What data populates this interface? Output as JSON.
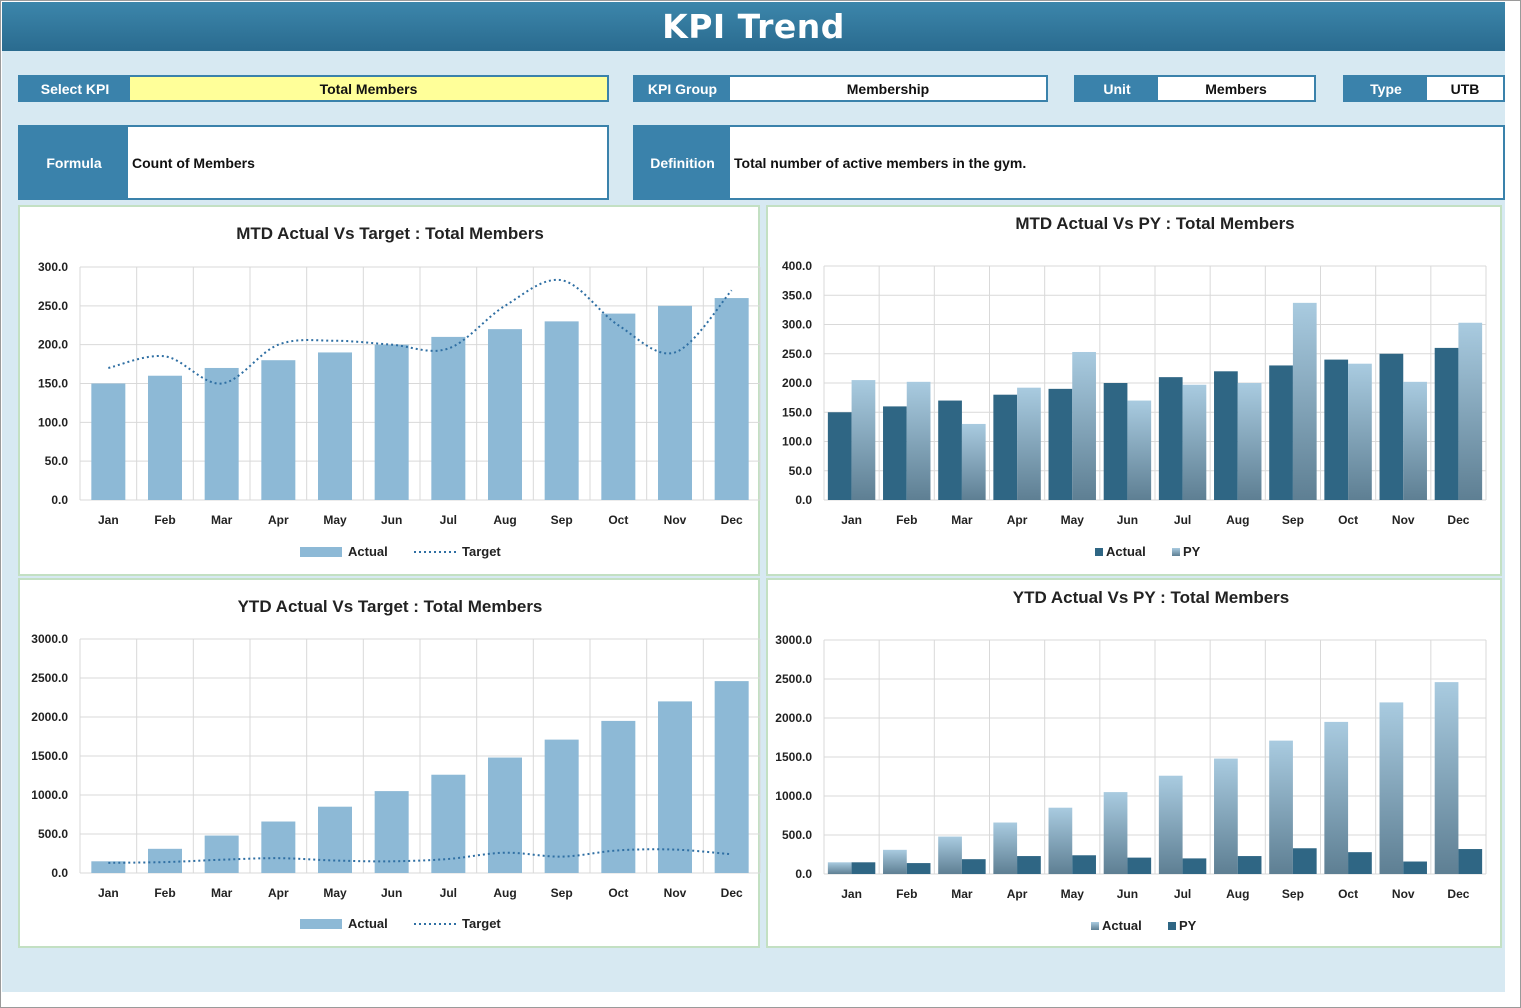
{
  "title": "KPI Trend",
  "filters": {
    "select_kpi": {
      "label": "Select KPI",
      "value": "Total Members"
    },
    "kpi_group": {
      "label": "KPI Group",
      "value": "Membership"
    },
    "unit": {
      "label": "Unit",
      "value": "Members"
    },
    "type": {
      "label": "Type",
      "value": "UTB"
    }
  },
  "formula": {
    "label": "Formula",
    "value": "Count of Members"
  },
  "definition": {
    "label": "Definition",
    "value": "Total number of active members in the gym."
  },
  "colors": {
    "header": "#3a82ab",
    "actual_light": "#8db9d6",
    "actual_dark": "#2f6684",
    "target_line": "#2f6fa3",
    "kpi_highlight": "#ffff99",
    "panel_border": "#c3e0c3"
  },
  "chart_data": [
    {
      "id": "mtd_target",
      "type": "bar",
      "title": "MTD Actual Vs Target : Total Members",
      "categories": [
        "Jan",
        "Feb",
        "Mar",
        "Apr",
        "May",
        "Jun",
        "Jul",
        "Aug",
        "Sep",
        "Oct",
        "Nov",
        "Dec"
      ],
      "ylim": [
        0,
        300
      ],
      "yticks": [
        "0.0",
        "50.0",
        "100.0",
        "150.0",
        "200.0",
        "250.0",
        "300.0"
      ],
      "legend": "bottom",
      "series": [
        {
          "name": "Actual",
          "kind": "bar",
          "values": [
            150,
            160,
            170,
            180,
            190,
            200,
            210,
            220,
            230,
            240,
            250,
            260
          ]
        },
        {
          "name": "Target",
          "kind": "dotted-line",
          "values": [
            170,
            185,
            150,
            200,
            205,
            200,
            195,
            250,
            283,
            225,
            190,
            270
          ]
        }
      ]
    },
    {
      "id": "mtd_py",
      "type": "bar",
      "title": "MTD Actual Vs PY : Total Members",
      "categories": [
        "Jan",
        "Feb",
        "Mar",
        "Apr",
        "May",
        "Jun",
        "Jul",
        "Aug",
        "Sep",
        "Oct",
        "Nov",
        "Dec"
      ],
      "ylim": [
        0,
        400
      ],
      "yticks": [
        "0.0",
        "50.0",
        "100.0",
        "150.0",
        "200.0",
        "250.0",
        "300.0",
        "350.0",
        "400.0"
      ],
      "legend": "bottom",
      "series": [
        {
          "name": "Actual",
          "kind": "bar-dark",
          "values": [
            150,
            160,
            170,
            180,
            190,
            200,
            210,
            220,
            230,
            240,
            250,
            260
          ]
        },
        {
          "name": "PY",
          "kind": "bar-gradient",
          "values": [
            205,
            202,
            130,
            192,
            253,
            170,
            197,
            200,
            337,
            233,
            202,
            303
          ]
        }
      ]
    },
    {
      "id": "ytd_target",
      "type": "bar",
      "title": "YTD Actual Vs Target : Total Members",
      "categories": [
        "Jan",
        "Feb",
        "Mar",
        "Apr",
        "May",
        "Jun",
        "Jul",
        "Aug",
        "Sep",
        "Oct",
        "Nov",
        "Dec"
      ],
      "ylim": [
        0,
        3000
      ],
      "yticks": [
        "0.0",
        "500.0",
        "1000.0",
        "1500.0",
        "2000.0",
        "2500.0",
        "3000.0"
      ],
      "legend": "bottom",
      "series": [
        {
          "name": "Actual",
          "kind": "bar",
          "values": [
            150,
            310,
            480,
            660,
            850,
            1050,
            1260,
            1480,
            1710,
            1950,
            2200,
            2460
          ]
        },
        {
          "name": "Target",
          "kind": "dotted-line",
          "values": [
            130,
            140,
            170,
            190,
            160,
            150,
            180,
            260,
            210,
            290,
            300,
            240
          ]
        }
      ]
    },
    {
      "id": "ytd_py",
      "type": "bar",
      "title": "YTD Actual Vs PY : Total Members",
      "categories": [
        "Jan",
        "Feb",
        "Mar",
        "Apr",
        "May",
        "Jun",
        "Jul",
        "Aug",
        "Sep",
        "Oct",
        "Nov",
        "Dec"
      ],
      "ylim": [
        0,
        3000
      ],
      "yticks": [
        "0.0",
        "500.0",
        "1000.0",
        "1500.0",
        "2000.0",
        "2500.0",
        "3000.0"
      ],
      "legend": "bottom",
      "series": [
        {
          "name": "Actual",
          "kind": "bar-gradient",
          "values": [
            150,
            310,
            480,
            660,
            850,
            1050,
            1260,
            1480,
            1710,
            1950,
            2200,
            2460
          ]
        },
        {
          "name": "PY",
          "kind": "bar-dark",
          "values": [
            150,
            140,
            190,
            230,
            240,
            210,
            200,
            230,
            330,
            280,
            160,
            320
          ]
        }
      ]
    }
  ]
}
